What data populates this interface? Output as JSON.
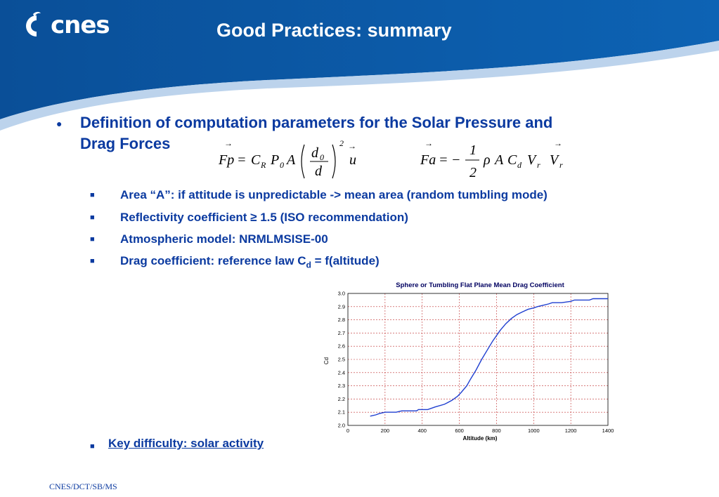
{
  "header": {
    "logo_text": "cnes",
    "title": "Good Practices: summary"
  },
  "main_bullet": {
    "line1": "Definition of computation parameters for the Solar Pressure and",
    "line2": "Drag Forces"
  },
  "sub_bullets": [
    "Area “A”: if attitude is unpredictable -> mean area (random tumbling mode)",
    "Reflectivity coefficient ≥ 1.5 (ISO recommendation)",
    "Atmospheric model: NRMLMSISE-00",
    "Drag coefficient: reference law  C"
  ],
  "drag_subscript": "d",
  "drag_suffix": " = f(altitude)",
  "key_difficulty": "Key difficulty: solar activity",
  "footer": "CNES/DCT/SB/MS",
  "colors": {
    "header_blue": "#0a5aa8",
    "text_blue": "#0b3aa0",
    "curve_blue": "#1f3fd0"
  },
  "chart_data": {
    "type": "line",
    "title": "Sphere or Tumbling Flat Plane Mean Drag Coefficient",
    "xlabel": "Altitude (km)",
    "ylabel": "Cd",
    "xlim": [
      0,
      1400
    ],
    "ylim": [
      2.0,
      3.0
    ],
    "x_ticks": [
      "0",
      "200",
      "400",
      "600",
      "800",
      "1000",
      "1200",
      "1400"
    ],
    "y_ticks": [
      "2.0",
      "2.1",
      "2.2",
      "2.3",
      "2.4",
      "2.5",
      "2.6",
      "2.7",
      "2.8",
      "2.9",
      "3.0"
    ],
    "grid": true,
    "series": [
      {
        "x": [
          120,
          150,
          170,
          200,
          260,
          290,
          370,
          380,
          430,
          470,
          520,
          560,
          590,
          610,
          640,
          660,
          690,
          720,
          750,
          780,
          820,
          850,
          880,
          910,
          940,
          970,
          1000,
          1020,
          1050,
          1080,
          1100,
          1150,
          1200,
          1220,
          1300,
          1320,
          1400
        ],
        "y": [
          2.07,
          2.08,
          2.09,
          2.1,
          2.1,
          2.11,
          2.11,
          2.12,
          2.12,
          2.14,
          2.16,
          2.19,
          2.22,
          2.25,
          2.3,
          2.35,
          2.42,
          2.5,
          2.57,
          2.64,
          2.72,
          2.77,
          2.81,
          2.84,
          2.86,
          2.88,
          2.89,
          2.9,
          2.91,
          2.92,
          2.93,
          2.93,
          2.94,
          2.95,
          2.95,
          2.96,
          2.96
        ]
      }
    ]
  }
}
